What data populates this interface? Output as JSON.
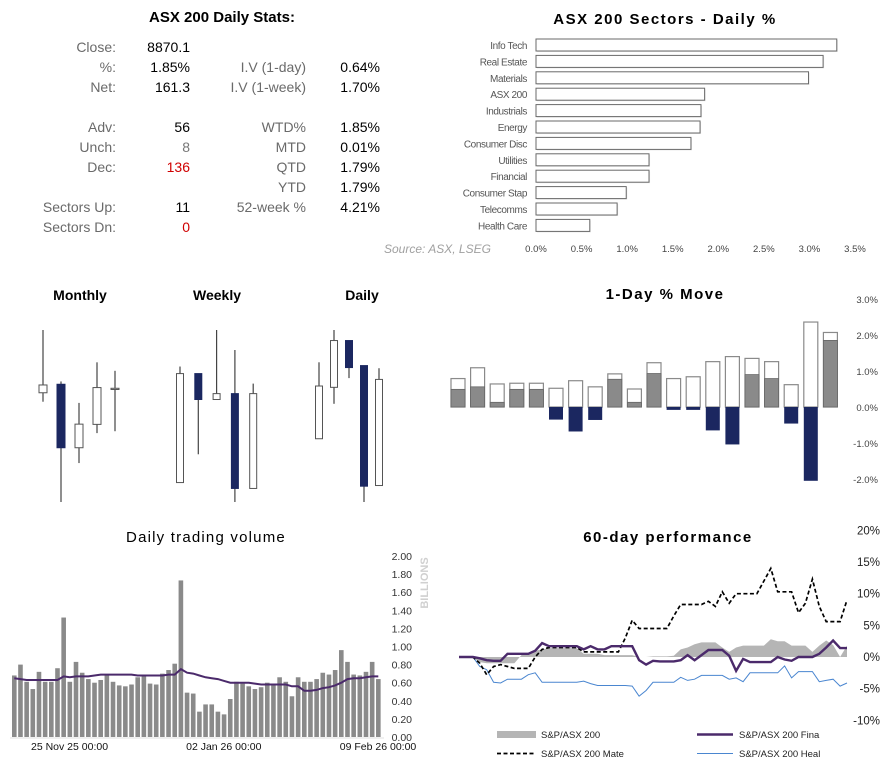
{
  "stats": {
    "title": "ASX 200 Daily Stats:",
    "rows": [
      {
        "l1": "Close:",
        "v1": "8870.1",
        "l2": "",
        "v2": ""
      },
      {
        "l1": "%:",
        "v1": "1.85%",
        "l2": "I.V (1-day)",
        "v2": "0.64%"
      },
      {
        "l1": "Net:",
        "v1": "161.3",
        "l2": "I.V (1-week)",
        "v2": "1.70%"
      },
      {
        "l1": "Adv:",
        "v1": "56",
        "l2": "WTD%",
        "v2": "1.85%"
      },
      {
        "l1": "Unch:",
        "v1": "8",
        "l2": "MTD",
        "v2": "0.01%"
      },
      {
        "l1": "Dec:",
        "v1": "136",
        "l2": "QTD",
        "v2": "1.79%"
      },
      {
        "l1": "",
        "v1": "",
        "l2": "YTD",
        "v2": "1.79%"
      },
      {
        "l1": "Sectors Up:",
        "v1": "11",
        "l2": "52-week %",
        "v2": "4.21%"
      },
      {
        "l1": "Sectors Dn:",
        "v1": "0",
        "l2": "",
        "v2": ""
      }
    ],
    "source": "Source: ASX, LSEG"
  },
  "colors": {
    "navy": "#1b2760",
    "gray_bar": "#8a8a8a",
    "purple": "#4b2a6b",
    "blue": "#4a86d0",
    "red": "#d00000",
    "area": "#b5b5b5"
  },
  "chart_data": [
    {
      "type": "bar",
      "orientation": "horizontal",
      "title": "ASX 200 Sectors - Daily %",
      "categories": [
        "Info Tech",
        "Real Estate",
        "Materials",
        "ASX 200",
        "Industrials",
        "Energy",
        "Consumer Disc",
        "Utilities",
        "Financial",
        "Consumer Stap",
        "Telecomms",
        "Health Care"
      ],
      "values": [
        3.3,
        3.15,
        2.99,
        1.85,
        1.81,
        1.8,
        1.7,
        1.24,
        1.24,
        0.99,
        0.89,
        0.59
      ],
      "xlim": [
        0,
        3.5
      ],
      "ticks": [
        "0.0%",
        "0.5%",
        "1.0%",
        "1.5%",
        "2.0%",
        "2.5%",
        "3.0%",
        "3.5%"
      ]
    },
    {
      "type": "candlestick",
      "title": "Monthly",
      "ohlc": [
        [
          8851,
          9117,
          8813,
          8884
        ],
        [
          8887,
          8899,
          8388,
          8618
        ],
        [
          8618,
          8808,
          8553,
          8718
        ],
        [
          8717,
          8980,
          8680,
          8873
        ],
        [
          8869,
          8944,
          8688,
          8870
        ]
      ]
    },
    {
      "type": "candlestick",
      "title": "Weekly",
      "ohlc": [
        [
          8719,
          8916,
          8719,
          8904
        ],
        [
          8904,
          8904,
          8767,
          8860
        ],
        [
          8860,
          8978,
          8860,
          8870
        ],
        [
          8870,
          8944,
          8686,
          8709
        ],
        [
          8709,
          8887,
          8709,
          8870
        ]
      ]
    },
    {
      "type": "candlestick",
      "title": "Daily",
      "ohlc": [
        [
          8780,
          8896,
          8780,
          8860
        ],
        [
          8858,
          8945,
          8833,
          8929
        ],
        [
          8929,
          8929,
          8872,
          8888
        ],
        [
          8891,
          8891,
          8684,
          8708
        ],
        [
          8709,
          8887,
          8709,
          8870
        ]
      ]
    },
    {
      "type": "bar",
      "title": "1-Day % Move",
      "range_high": [
        0.79,
        1.09,
        0.64,
        0.66,
        0.66,
        0.52,
        0.73,
        0.56,
        0.92,
        0.5,
        1.23,
        0.79,
        0.84,
        1.26,
        1.4,
        1.35,
        1.26,
        0.62,
        2.36,
        2.07
      ],
      "close": [
        0.49,
        0.56,
        0.13,
        0.49,
        0.49,
        -0.35,
        -0.68,
        -0.36,
        0.77,
        0.13,
        0.93,
        -0.08,
        -0.08,
        -0.65,
        -1.04,
        0.9,
        0.79,
        -0.46,
        -2.05,
        1.85
      ],
      "ylim": [
        -2.0,
        3.0
      ],
      "ticks": [
        "3.0%",
        "2.0%",
        "1.0%",
        "0.0%",
        "-1.0%",
        "-2.0%"
      ],
      "tick_values": [
        3,
        2,
        1,
        0,
        -1,
        -2
      ]
    },
    {
      "type": "bar",
      "title": "Daily trading volume",
      "ylabel": "BILLIONS",
      "ylim": [
        0,
        2
      ],
      "yticks": [
        "0.00",
        "0.20",
        "0.40",
        "0.60",
        "0.80",
        "1.00",
        "1.20",
        "1.40",
        "1.60",
        "1.80",
        "2.00"
      ],
      "xticks": [
        {
          "index": 9,
          "label": "25 Nov 25 00:00"
        },
        {
          "index": 34,
          "label": "02 Jan 26 00:00"
        },
        {
          "index": 59,
          "label": "09 Feb 26 00:00"
        }
      ],
      "values": [
        0.68,
        0.8,
        0.61,
        0.53,
        0.72,
        0.61,
        0.61,
        0.76,
        1.32,
        0.61,
        0.83,
        0.71,
        0.64,
        0.6,
        0.63,
        0.68,
        0.61,
        0.57,
        0.56,
        0.58,
        0.66,
        0.68,
        0.59,
        0.58,
        0.7,
        0.74,
        0.81,
        1.73,
        0.49,
        0.48,
        0.28,
        0.36,
        0.36,
        0.28,
        0.25,
        0.42,
        0.61,
        0.59,
        0.56,
        0.53,
        0.55,
        0.6,
        0.59,
        0.66,
        0.61,
        0.45,
        0.66,
        0.61,
        0.61,
        0.64,
        0.71,
        0.69,
        0.74,
        0.96,
        0.83,
        0.69,
        0.68,
        0.72,
        0.83,
        0.64
      ],
      "moving_average": [
        0.65,
        0.64,
        0.63,
        0.63,
        0.63,
        0.63,
        0.63,
        0.63,
        0.67,
        0.66,
        0.67,
        0.67,
        0.67,
        0.68,
        0.69,
        0.69,
        0.69,
        0.69,
        0.69,
        0.69,
        0.68,
        0.68,
        0.68,
        0.68,
        0.68,
        0.69,
        0.69,
        0.75,
        0.71,
        0.7,
        0.68,
        0.66,
        0.65,
        0.64,
        0.62,
        0.6,
        0.6,
        0.6,
        0.6,
        0.59,
        0.58,
        0.58,
        0.58,
        0.58,
        0.58,
        0.56,
        0.56,
        0.51,
        0.51,
        0.52,
        0.54,
        0.55,
        0.57,
        0.6,
        0.64,
        0.65,
        0.65,
        0.66,
        0.67,
        0.67
      ]
    },
    {
      "type": "line",
      "title": "60-day performance",
      "ylim": [
        -10,
        20
      ],
      "yticks": [
        "20%",
        "15%",
        "10%",
        "5%",
        "0%",
        "-5%",
        "-10%"
      ],
      "ytick_values": [
        20,
        15,
        10,
        5,
        0,
        -5,
        -10
      ],
      "legend": "bottom",
      "series": [
        {
          "name": "S&P/ASX 200",
          "style": "area",
          "values": [
            0,
            0,
            -0.2,
            -0.8,
            -1,
            -1,
            -1,
            -1,
            -1,
            0.3,
            0.5,
            1,
            1.2,
            1.4,
            1.4,
            1.4,
            1.4,
            1.4,
            0.5,
            0.5,
            0.5,
            0.3,
            0.3,
            0.3,
            0.3,
            0.3,
            0,
            0,
            0.1,
            0.1,
            0.1,
            0.2,
            1.2,
            1.5,
            2.0,
            2.3,
            2.3,
            2.3,
            1.5,
            0.8,
            1.5,
            1.8,
            1.8,
            1.8,
            1.8,
            2.8,
            2.5,
            2.5,
            1.8,
            1.8,
            1.8,
            0.8,
            1.8,
            2.6,
            1.9,
            0,
            1.8
          ]
        },
        {
          "name": "S&P/ASX 200 Fina",
          "style": "solid-thick",
          "values": [
            0,
            0,
            0,
            -0.2,
            -0.5,
            -0.6,
            -0.6,
            0.5,
            0.5,
            0.5,
            0.5,
            1,
            2.2,
            1.7,
            1.7,
            1.7,
            1.7,
            1.7,
            1.2,
            1.7,
            1.2,
            1.2,
            1.7,
            1.7,
            1.7,
            1.7,
            -0.5,
            -1.2,
            -0.6,
            -0.7,
            -0.7,
            -0.7,
            -0.5,
            0.3,
            -0.5,
            0.3,
            1.1,
            1.1,
            1.1,
            0.2,
            -2.2,
            -0.3,
            -0.8,
            -0.8,
            -0.8,
            -0.8,
            0,
            -0.4,
            -0.6,
            0,
            0,
            0,
            0.5,
            1.5,
            2.6,
            1.4,
            1.4
          ]
        },
        {
          "name": "S&P/ASX 200 Mate",
          "style": "dashed",
          "values": [
            0,
            0,
            0,
            -1,
            -2.8,
            -1.5,
            -1.2,
            -1.5,
            -1.8,
            -1.8,
            -1.8,
            0,
            1.2,
            1.5,
            1.5,
            1.5,
            1.5,
            1.5,
            0.8,
            0.8,
            0.8,
            0.8,
            0.8,
            0.8,
            3,
            5.8,
            4.5,
            4.5,
            4.5,
            4.5,
            4.5,
            6.5,
            8.3,
            8.3,
            8.3,
            8.3,
            8.8,
            8,
            10.3,
            8.5,
            10,
            10,
            10,
            10,
            12,
            14,
            10.3,
            10.3,
            10.3,
            7,
            8.5,
            12.3,
            8,
            5.6,
            5.6,
            5.6,
            9
          ]
        },
        {
          "name": "S&P/ASX 200 Heal",
          "style": "solid-thin",
          "values": [
            0,
            0,
            0,
            -1.5,
            -2,
            -4,
            -4.1,
            -3.5,
            -3.5,
            -3.5,
            -2.8,
            -2.5,
            -4,
            -4,
            -4,
            -4,
            -4,
            -4,
            -3.8,
            -4.2,
            -4.5,
            -4.5,
            -4.5,
            -4.5,
            -4.5,
            -4.6,
            -6.2,
            -5.3,
            -4,
            -4,
            -4,
            -4,
            -3.2,
            -3.7,
            -3.5,
            -2.9,
            -2.9,
            -2.9,
            -2.9,
            -3.5,
            -3.3,
            -3.9,
            -2.5,
            -2.5,
            -2.5,
            -2.5,
            -2.5,
            -1.4,
            -3.3,
            -2.3,
            -2.3,
            -2.3,
            -3.9,
            -3.7,
            -3.5,
            -4.6,
            -4.1
          ]
        }
      ]
    }
  ]
}
